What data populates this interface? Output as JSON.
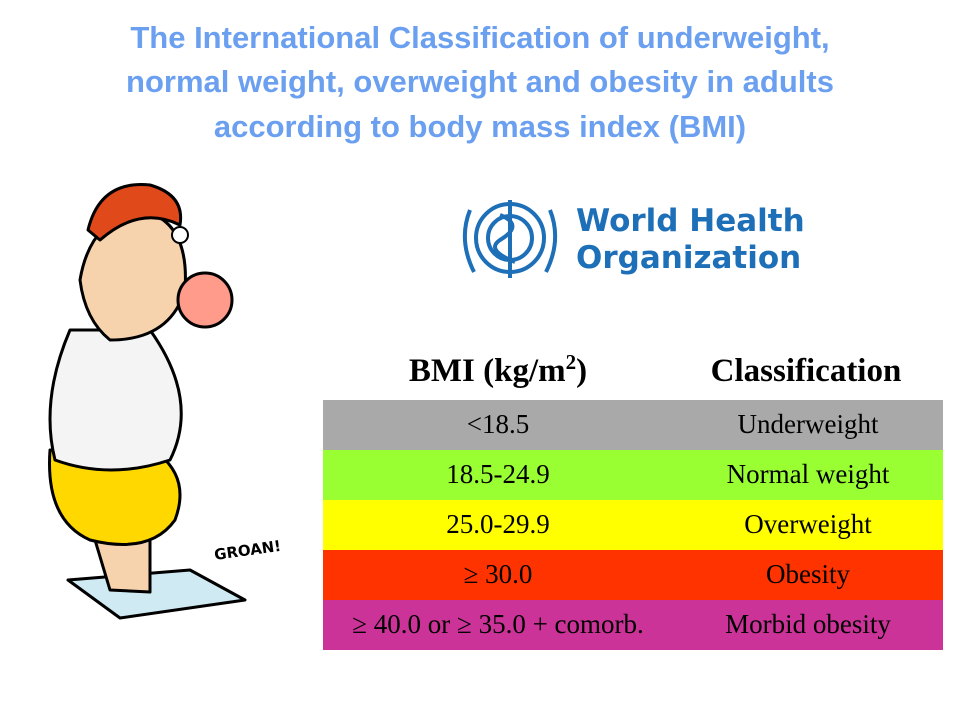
{
  "header": {
    "title_lines": [
      "The International Classification of underweight,",
      "normal weight, overweight and obesity in adults",
      "according to body mass index (BMI)"
    ]
  },
  "logo": {
    "lines": [
      "World Health",
      "Organization"
    ]
  },
  "cartoon": {
    "caption": "GROAN!"
  },
  "table": {
    "columns": [
      [
        "BMI (kg/m",
        "2",
        ")"
      ],
      "Classification"
    ],
    "rows": [
      [
        "<18.5",
        "Underweight"
      ],
      [
        "18.5-24.9",
        "Normal weight"
      ],
      [
        "25.0-29.9",
        "Overweight"
      ],
      [
        "≥ 30.0",
        "Obesity"
      ],
      [
        "≥ 40.0 or ≥ 35.0 + comorb.",
        "Morbid obesity"
      ]
    ]
  }
}
